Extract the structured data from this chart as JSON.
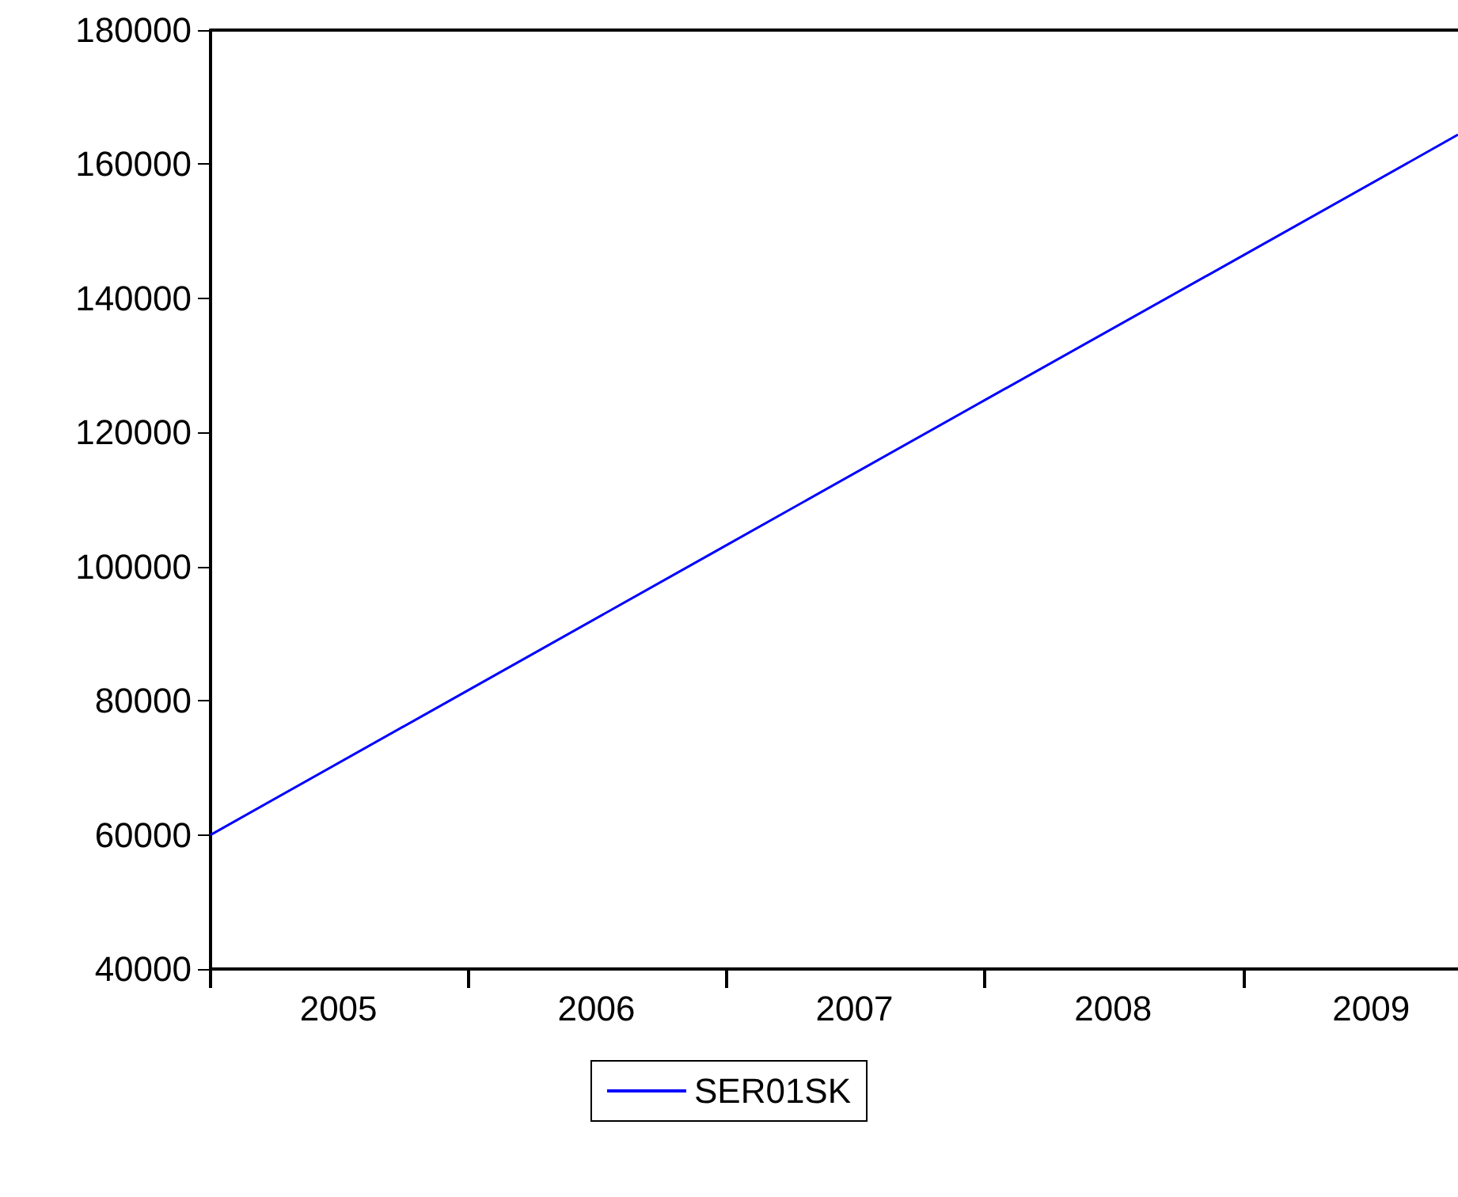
{
  "chart_data": {
    "type": "line",
    "x": [
      "2005-01",
      "2006-01",
      "2007-01",
      "2008-01",
      "2009-01",
      "2009-11"
    ],
    "series": [
      {
        "name": "SER01SK",
        "color": "#0000ff",
        "values": [
          60000,
          81600,
          103200,
          124800,
          146400,
          164400
        ]
      }
    ],
    "xlim": [
      "2005-01",
      "2009-11"
    ],
    "xticks": [
      {
        "value": "2005-01",
        "label": null
      },
      {
        "value": "2005-07",
        "label": "2005"
      },
      {
        "value": "2006-01",
        "label": null
      },
      {
        "value": "2006-07",
        "label": "2006"
      },
      {
        "value": "2007-01",
        "label": null
      },
      {
        "value": "2007-07",
        "label": "2007"
      },
      {
        "value": "2008-01",
        "label": null
      },
      {
        "value": "2008-07",
        "label": "2008"
      },
      {
        "value": "2009-01",
        "label": null
      },
      {
        "value": "2009-07",
        "label": "2009"
      }
    ],
    "ylim": [
      40000,
      180000
    ],
    "yticks": [
      40000,
      60000,
      80000,
      100000,
      120000,
      140000,
      160000,
      180000
    ],
    "grid": false,
    "legend": "bottom",
    "marker": "none",
    "line_style": "solid"
  }
}
